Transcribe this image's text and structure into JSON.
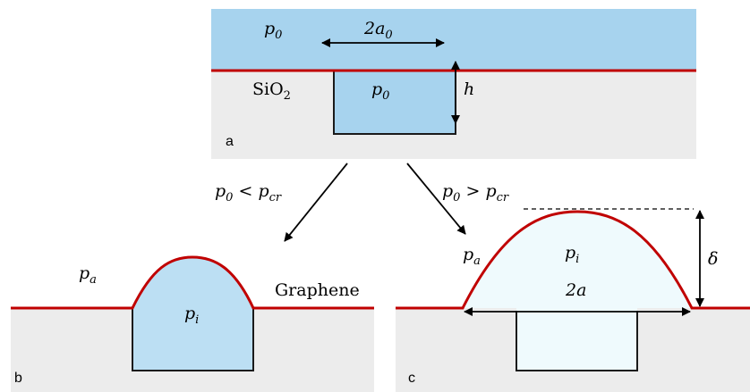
{
  "panel_a": {
    "label": "a",
    "pressure_top": [
      "p",
      "0"
    ],
    "width": [
      "2a",
      "0"
    ],
    "substrate": [
      "SiO",
      "2"
    ],
    "pressure_cavity": [
      "p",
      "0"
    ],
    "depth": "h"
  },
  "branches": {
    "low": [
      "p",
      "0",
      " < ",
      "p",
      "cr"
    ],
    "high": [
      "p",
      "0",
      " > ",
      "p",
      "cr"
    ]
  },
  "panel_b": {
    "label": "b",
    "pressure_out": [
      "p",
      "a"
    ],
    "membrane": "Graphene",
    "pressure_in": [
      "p",
      "i"
    ]
  },
  "panel_c": {
    "label": "c",
    "pressure_out": [
      "p",
      "a"
    ],
    "pressure_in": [
      "p",
      "i"
    ],
    "deflection": "δ",
    "width": "2a"
  }
}
